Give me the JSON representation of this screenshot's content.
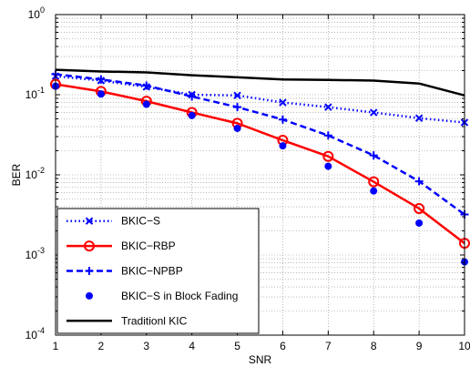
{
  "chart_data": {
    "type": "line",
    "title": "",
    "xlabel": "SNR",
    "ylabel": "BER",
    "xlim": [
      1,
      10
    ],
    "ylim": [
      0.0001,
      1
    ],
    "yscale": "log",
    "grid": true,
    "x_ticks": [
      "1",
      "2",
      "3",
      "4",
      "5",
      "6",
      "7",
      "8",
      "9",
      "10"
    ],
    "y_ticks": [
      {
        "base": "10",
        "exp": "-4",
        "value": 0.0001
      },
      {
        "base": "10",
        "exp": "-3",
        "value": 0.001
      },
      {
        "base": "10",
        "exp": "-2",
        "value": 0.01
      },
      {
        "base": "10",
        "exp": "-1",
        "value": 0.1
      },
      {
        "base": "10",
        "exp": "0",
        "value": 1
      }
    ],
    "legend_position": "bottom-left",
    "x": [
      1,
      2,
      3,
      4,
      5,
      6,
      7,
      8,
      9,
      10
    ],
    "series": [
      {
        "name": "BKIC−S",
        "color": "#0000ff",
        "line": "dotted",
        "marker": "x",
        "values": [
          0.17,
          0.15,
          0.125,
          0.1,
          0.098,
          0.08,
          0.07,
          0.06,
          0.051,
          0.045
        ]
      },
      {
        "name": "BKIC−RBP",
        "color": "#ff0000",
        "line": "solid",
        "marker": "circle",
        "values": [
          0.135,
          0.11,
          0.083,
          0.06,
          0.044,
          0.027,
          0.017,
          0.0082,
          0.0038,
          0.0014
        ]
      },
      {
        "name": "BKIC−NPBP",
        "color": "#0000ff",
        "line": "dashed",
        "marker": "plus",
        "values": [
          0.18,
          0.155,
          0.13,
          0.095,
          0.07,
          0.049,
          0.031,
          0.0175,
          0.0083,
          0.0032
        ]
      },
      {
        "name": "BKIC−S in Block Fading",
        "color": "#0000ff",
        "line": "none",
        "marker": "dot",
        "values": [
          0.128,
          0.102,
          0.076,
          0.055,
          0.038,
          0.023,
          0.0128,
          0.0063,
          0.0025,
          0.00082
        ]
      },
      {
        "name": "Traditionl KIC",
        "color": "#000000",
        "line": "solid",
        "marker": "none",
        "values": [
          0.205,
          0.195,
          0.19,
          0.175,
          0.165,
          0.155,
          0.153,
          0.15,
          0.138,
          0.098
        ]
      }
    ]
  }
}
